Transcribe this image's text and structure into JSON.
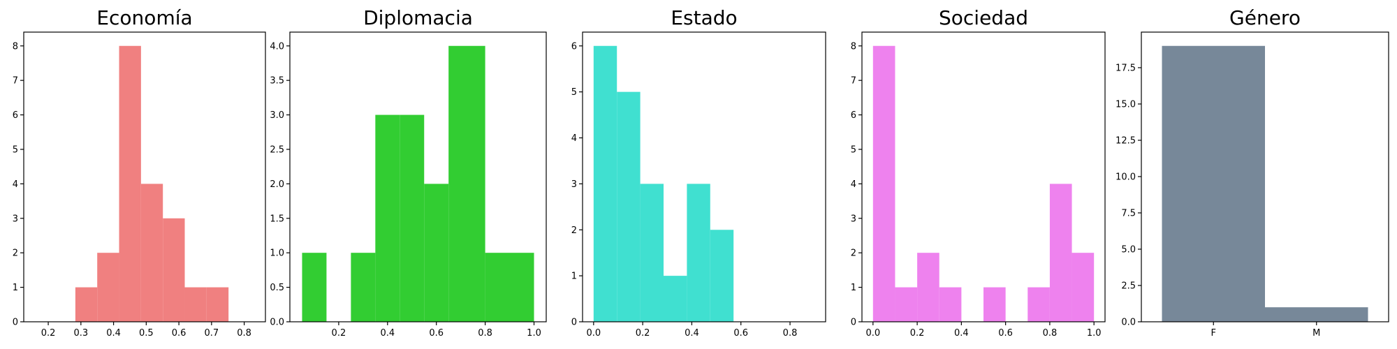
{
  "chart_data": [
    {
      "type": "bar",
      "title": "Economía",
      "color": "#f08080",
      "xlim": [
        0.125,
        0.865
      ],
      "ylim": [
        0,
        8.4
      ],
      "xticks": [
        0.2,
        0.3,
        0.4,
        0.5,
        0.6,
        0.7,
        0.8
      ],
      "xtick_labels": [
        "0.2",
        "0.3",
        "0.4",
        "0.5",
        "0.6",
        "0.7",
        "0.8"
      ],
      "yticks": [
        0,
        1,
        2,
        3,
        4,
        5,
        6,
        7,
        8
      ],
      "ytick_labels": [
        "0",
        "1",
        "2",
        "3",
        "4",
        "5",
        "6",
        "7",
        "8"
      ],
      "bins": [
        {
          "x0": 0.25,
          "x1": 0.283,
          "count": 0
        },
        {
          "x0": 0.283,
          "x1": 0.35,
          "count": 1
        },
        {
          "x0": 0.35,
          "x1": 0.417,
          "count": 2
        },
        {
          "x0": 0.417,
          "x1": 0.484,
          "count": 8
        },
        {
          "x0": 0.484,
          "x1": 0.551,
          "count": 4
        },
        {
          "x0": 0.551,
          "x1": 0.618,
          "count": 3
        },
        {
          "x0": 0.618,
          "x1": 0.685,
          "count": 1
        },
        {
          "x0": 0.685,
          "x1": 0.752,
          "count": 1
        }
      ]
    },
    {
      "type": "bar",
      "title": "Diplomacia",
      "color": "#32cd32",
      "xlim": [
        0.0,
        1.05
      ],
      "ylim": [
        0,
        4.2
      ],
      "xticks": [
        0.2,
        0.4,
        0.6,
        0.8,
        1.0
      ],
      "xtick_labels": [
        "0.2",
        "0.4",
        "0.6",
        "0.8",
        "1.0"
      ],
      "yticks": [
        0,
        0.5,
        1.0,
        1.5,
        2.0,
        2.5,
        3.0,
        3.5,
        4.0
      ],
      "ytick_labels": [
        "0.0",
        "0.5",
        "1.0",
        "1.5",
        "2.0",
        "2.5",
        "3.0",
        "3.5",
        "4.0"
      ],
      "bins": [
        {
          "x0": 0.05,
          "x1": 0.15,
          "count": 1
        },
        {
          "x0": 0.15,
          "x1": 0.25,
          "count": 0
        },
        {
          "x0": 0.25,
          "x1": 0.35,
          "count": 1
        },
        {
          "x0": 0.35,
          "x1": 0.45,
          "count": 3
        },
        {
          "x0": 0.45,
          "x1": 0.55,
          "count": 3
        },
        {
          "x0": 0.55,
          "x1": 0.65,
          "count": 2
        },
        {
          "x0": 0.65,
          "x1": 0.8,
          "count": 4
        },
        {
          "x0": 0.8,
          "x1": 1.0,
          "count": 1
        }
      ]
    },
    {
      "type": "bar",
      "title": "Estado",
      "color": "#40e0d0",
      "xlim": [
        -0.045,
        0.945
      ],
      "ylim": [
        0,
        6.3
      ],
      "xticks": [
        0.0,
        0.2,
        0.4,
        0.6,
        0.8
      ],
      "xtick_labels": [
        "0.0",
        "0.2",
        "0.4",
        "0.6",
        "0.8"
      ],
      "yticks": [
        0,
        1,
        2,
        3,
        4,
        5,
        6
      ],
      "ytick_labels": [
        "0",
        "1",
        "2",
        "3",
        "4",
        "5",
        "6"
      ],
      "bins": [
        {
          "x0": 0.0,
          "x1": 0.095,
          "count": 6
        },
        {
          "x0": 0.095,
          "x1": 0.19,
          "count": 5
        },
        {
          "x0": 0.19,
          "x1": 0.285,
          "count": 3
        },
        {
          "x0": 0.285,
          "x1": 0.38,
          "count": 1
        },
        {
          "x0": 0.38,
          "x1": 0.475,
          "count": 3
        },
        {
          "x0": 0.475,
          "x1": 0.57,
          "count": 2
        }
      ]
    },
    {
      "type": "bar",
      "title": "Sociedad",
      "color": "#ee82ee",
      "xlim": [
        -0.05,
        1.05
      ],
      "ylim": [
        0,
        8.4
      ],
      "xticks": [
        0.0,
        0.2,
        0.4,
        0.6,
        0.8,
        1.0
      ],
      "xtick_labels": [
        "0.0",
        "0.2",
        "0.4",
        "0.6",
        "0.8",
        "1.0"
      ],
      "yticks": [
        0,
        1,
        2,
        3,
        4,
        5,
        6,
        7,
        8
      ],
      "ytick_labels": [
        "0",
        "1",
        "2",
        "3",
        "4",
        "5",
        "6",
        "7",
        "8"
      ],
      "bins": [
        {
          "x0": 0.0,
          "x1": 0.1,
          "count": 8
        },
        {
          "x0": 0.1,
          "x1": 0.2,
          "count": 1
        },
        {
          "x0": 0.2,
          "x1": 0.3,
          "count": 2
        },
        {
          "x0": 0.3,
          "x1": 0.4,
          "count": 1
        },
        {
          "x0": 0.4,
          "x1": 0.5,
          "count": 0
        },
        {
          "x0": 0.5,
          "x1": 0.6,
          "count": 1
        },
        {
          "x0": 0.6,
          "x1": 0.7,
          "count": 0
        },
        {
          "x0": 0.7,
          "x1": 0.8,
          "count": 1
        },
        {
          "x0": 0.8,
          "x1": 0.9,
          "count": 4
        },
        {
          "x0": 0.9,
          "x1": 1.0,
          "count": 2
        }
      ]
    },
    {
      "type": "bar",
      "title": "Género",
      "color": "#778899",
      "xlim": [
        -0.7,
        1.7
      ],
      "ylim": [
        0,
        19.95
      ],
      "xticks": [
        0,
        1
      ],
      "xtick_labels": [
        "F",
        "M"
      ],
      "yticks": [
        0,
        2.5,
        5.0,
        7.5,
        10.0,
        12.5,
        15.0,
        17.5
      ],
      "ytick_labels": [
        "0.0",
        "2.5",
        "5.0",
        "7.5",
        "10.0",
        "12.5",
        "15.0",
        "17.5"
      ],
      "bins": [
        {
          "x0": -0.5,
          "x1": 0.5,
          "count": 19
        },
        {
          "x0": 0.5,
          "x1": 1.5,
          "count": 1
        }
      ]
    }
  ]
}
